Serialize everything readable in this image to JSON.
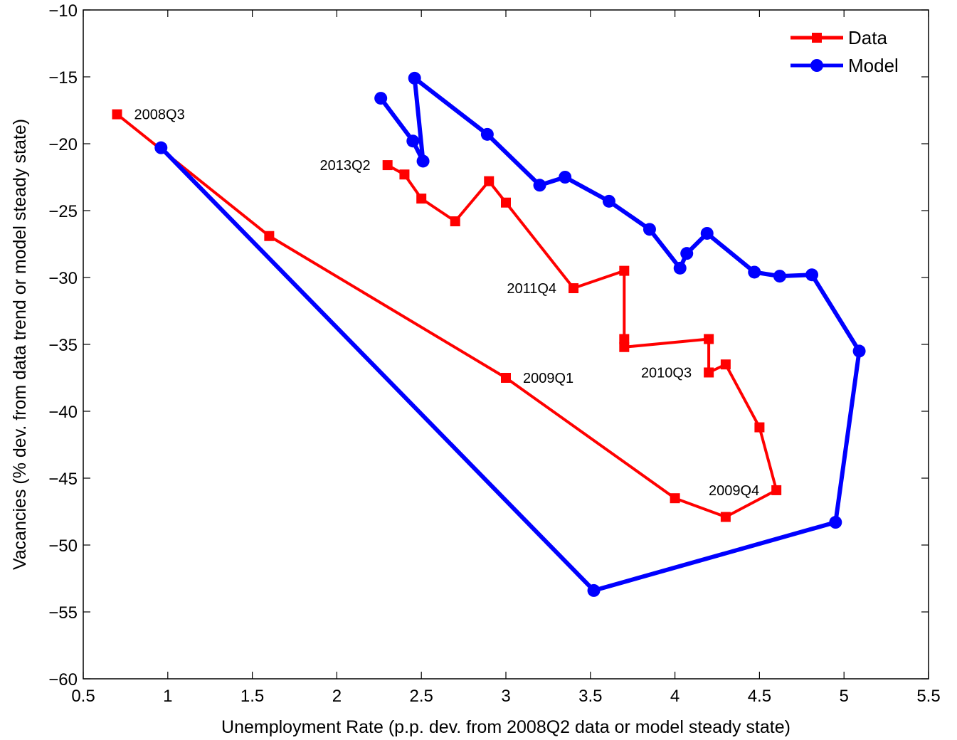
{
  "chart_data": {
    "type": "line",
    "title": "",
    "xlabel": "Unemployment Rate (p.p. dev. from 2008Q2 data or model steady state)",
    "ylabel": "Vacancies (% dev. from data trend or model steady state)",
    "xlim": [
      0.5,
      5.5
    ],
    "ylim": [
      -60,
      -10
    ],
    "xticks": [
      0.5,
      1,
      1.5,
      2,
      2.5,
      3,
      3.5,
      4,
      4.5,
      5,
      5.5
    ],
    "xtick_labels": [
      "0.5",
      "1",
      "1.5",
      "2",
      "2.5",
      "3",
      "3.5",
      "4",
      "4.5",
      "5",
      "5.5"
    ],
    "yticks": [
      -60,
      -55,
      -50,
      -45,
      -40,
      -35,
      -30,
      -25,
      -20,
      -15,
      -10
    ],
    "ytick_labels": [
      "−60",
      "−55",
      "−50",
      "−45",
      "−40",
      "−35",
      "−30",
      "−25",
      "−20",
      "−15",
      "−10"
    ],
    "grid": false,
    "legend_position": "top-right",
    "series": [
      {
        "name": "Data",
        "color": "#ff0000",
        "marker": "square",
        "x": [
          0.7,
          1.6,
          3.0,
          4.0,
          4.3,
          4.6,
          4.5,
          4.3,
          4.2,
          4.2,
          3.7,
          3.7,
          3.7,
          3.4,
          3.0,
          2.9,
          2.7,
          2.5,
          2.4,
          2.3
        ],
        "y": [
          -17.8,
          -26.9,
          -37.5,
          -46.5,
          -47.9,
          -45.9,
          -41.2,
          -36.5,
          -37.1,
          -34.6,
          -35.2,
          -34.6,
          -29.5,
          -30.8,
          -24.4,
          -22.8,
          -25.8,
          -24.1,
          -22.3,
          -21.6
        ]
      },
      {
        "name": "Model",
        "color": "#0000ff",
        "marker": "circle",
        "x": [
          0.96,
          3.52,
          4.95,
          5.09,
          4.81,
          4.62,
          4.47,
          4.19,
          4.07,
          4.03,
          3.85,
          3.61,
          3.35,
          3.2,
          2.89,
          2.46,
          2.51,
          2.45,
          2.26
        ],
        "y": [
          -20.3,
          -53.4,
          -48.3,
          -35.5,
          -29.8,
          -29.9,
          -29.6,
          -26.7,
          -28.2,
          -29.3,
          -26.4,
          -24.3,
          -22.5,
          -23.1,
          -19.3,
          -15.1,
          -21.3,
          -19.8,
          -16.6
        ]
      }
    ],
    "annotations": [
      {
        "text": "2008Q3",
        "x": 0.7,
        "y": -17.8,
        "anchor": "start",
        "dx": 24,
        "dy": 0
      },
      {
        "text": "2009Q1",
        "x": 3.0,
        "y": -37.5,
        "anchor": "start",
        "dx": 24,
        "dy": 0
      },
      {
        "text": "2009Q4",
        "x": 4.6,
        "y": -45.9,
        "anchor": "end",
        "dx": -24,
        "dy": 0
      },
      {
        "text": "2010Q3",
        "x": 4.2,
        "y": -37.1,
        "anchor": "end",
        "dx": -24,
        "dy": 0
      },
      {
        "text": "2011Q4",
        "x": 3.4,
        "y": -30.8,
        "anchor": "end",
        "dx": -24,
        "dy": 0
      },
      {
        "text": "2013Q2",
        "x": 2.3,
        "y": -21.6,
        "anchor": "end",
        "dx": -24,
        "dy": 0
      }
    ]
  }
}
